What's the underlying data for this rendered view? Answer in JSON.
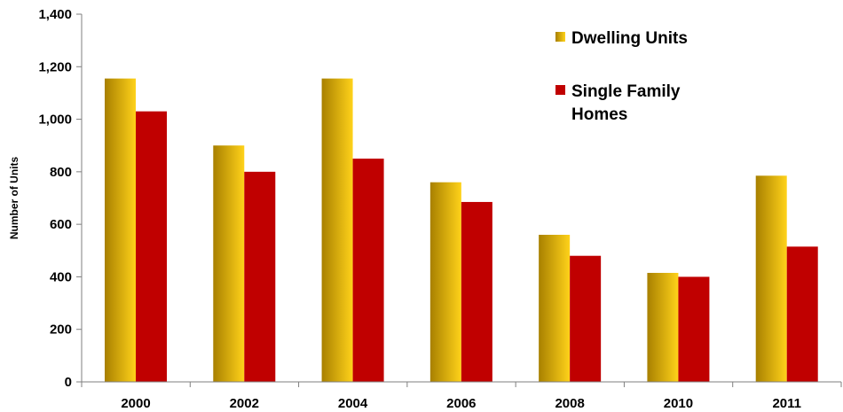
{
  "chart_data": {
    "type": "bar",
    "title": "",
    "xlabel": "",
    "ylabel": "Number of Units",
    "ylim": [
      0,
      1400
    ],
    "yticks": [
      0,
      200,
      400,
      600,
      800,
      1000,
      1200,
      1400
    ],
    "ytick_labels": [
      "0",
      "200",
      "400",
      "600",
      "800",
      "1,000",
      "1,200",
      "1,400"
    ],
    "categories": [
      "2000",
      "2002",
      "2004",
      "2006",
      "2008",
      "2010",
      "2011"
    ],
    "series": [
      {
        "name": "Dwelling Units",
        "legend_lines": [
          "Dwelling Units"
        ],
        "color": "#E8B400",
        "gradient": [
          "#A88000",
          "#FFD21A"
        ],
        "values": [
          1155,
          900,
          1155,
          760,
          560,
          415,
          785
        ]
      },
      {
        "name": "Single Family Homes",
        "legend_lines": [
          "Single Family",
          "Homes"
        ],
        "color": "#C00000",
        "values": [
          1030,
          800,
          850,
          685,
          480,
          400,
          515
        ]
      }
    ],
    "grid": false,
    "legend_position": "top-right"
  }
}
